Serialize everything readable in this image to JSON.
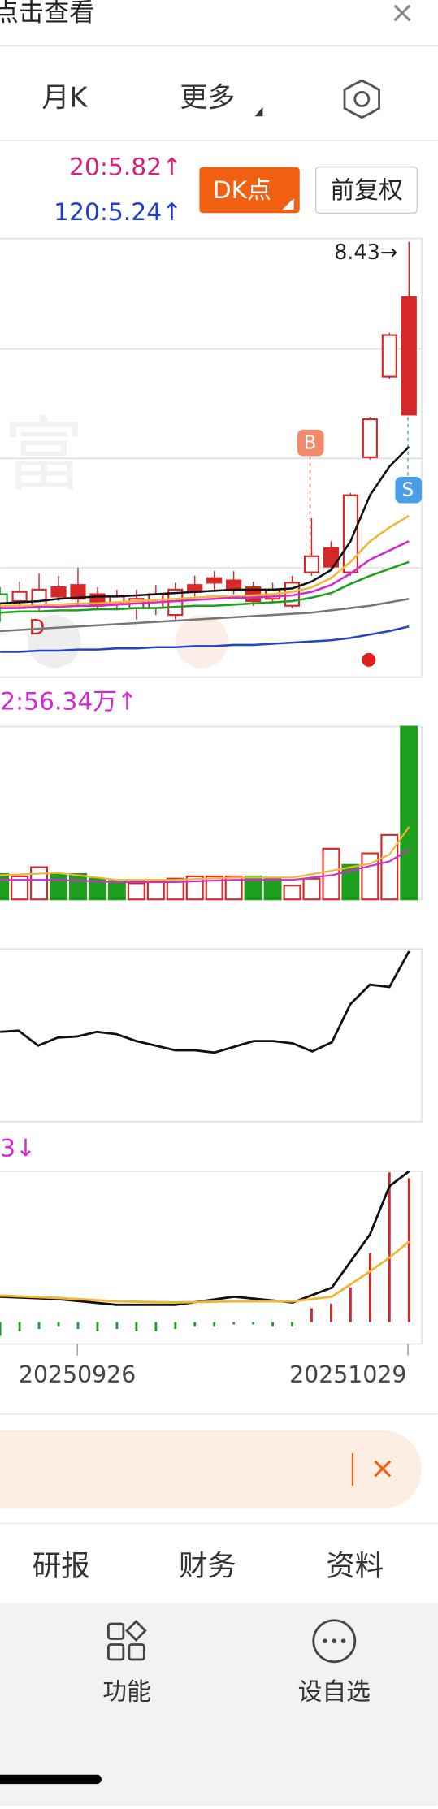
{
  "header": {
    "title": "点击查看",
    "close": "×"
  },
  "tabs": {
    "monthly": "月K",
    "more": "更多"
  },
  "ma_info": {
    "ma20": "20:5.82↑",
    "ma120": "120:5.24↑"
  },
  "buttons": {
    "dk": "DK点",
    "adjust": "前复权"
  },
  "main_chart": {
    "high_label": "8.43→",
    "buy": "B",
    "sell": "S",
    "d_marker": "D"
  },
  "volume": {
    "label": "2:56.34万↑"
  },
  "macd": {
    "label": "3↓"
  },
  "dates": [
    "20250926",
    "20251029"
  ],
  "search": {
    "close": "×"
  },
  "bottom_tabs": [
    "研报",
    "财务",
    "资料"
  ],
  "toolbar": [
    "功能",
    "设自选"
  ]
}
